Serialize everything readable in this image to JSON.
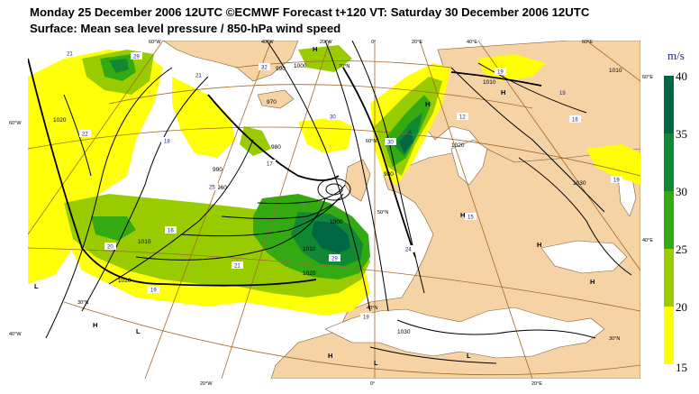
{
  "title": {
    "line1": "Monday 25 December 2006 12UTC ©ECMWF Forecast t+120 VT: Saturday 30 December 2006 12UTC",
    "line2": "Surface: Mean sea level pressure / 850-hPa wind speed"
  },
  "colors": {
    "sea": "#ffffff",
    "land": "#f6d3a4",
    "speed_15_20": "#ffff00",
    "speed_20_25": "#99cc00",
    "speed_25_30": "#33aa11",
    "speed_30_35": "#118833",
    "speed_35_40": "#006644",
    "graticule": "#a06a2a",
    "isobar": "#000000"
  },
  "colorbar": {
    "unit": "m/s",
    "levels": [
      "40",
      "35",
      "30",
      "25",
      "20",
      "15"
    ]
  },
  "graticule_labels": {
    "top": [
      "60°W",
      "40°W",
      "20°W",
      "0°",
      "20°E",
      "40°E",
      "60°E"
    ],
    "left": [
      "60°W",
      "40°W"
    ],
    "right": [
      "60°E",
      "40°E"
    ],
    "bottom": [
      "20°W",
      "0°",
      "20°E"
    ],
    "inner": [
      "70°N",
      "60°N",
      "50°N",
      "40°N",
      "30°N",
      "30°N"
    ]
  },
  "pressure_centres": {
    "low": "L",
    "high": "H"
  },
  "isobar_labels": [
    "1020",
    "1010",
    "1000",
    "990",
    "980",
    "970",
    "960",
    "1010",
    "1020",
    "1030",
    "1030",
    "1020",
    "1010",
    "990",
    "980",
    "1000",
    "1010",
    "1020"
  ],
  "wind_labels": [
    "21",
    "29",
    "22",
    "18",
    "17",
    "25",
    "21",
    "16",
    "20",
    "21",
    "19",
    "30",
    "32",
    "30",
    "29",
    "19",
    "19",
    "12",
    "16",
    "24",
    "19",
    "15",
    "19"
  ]
}
